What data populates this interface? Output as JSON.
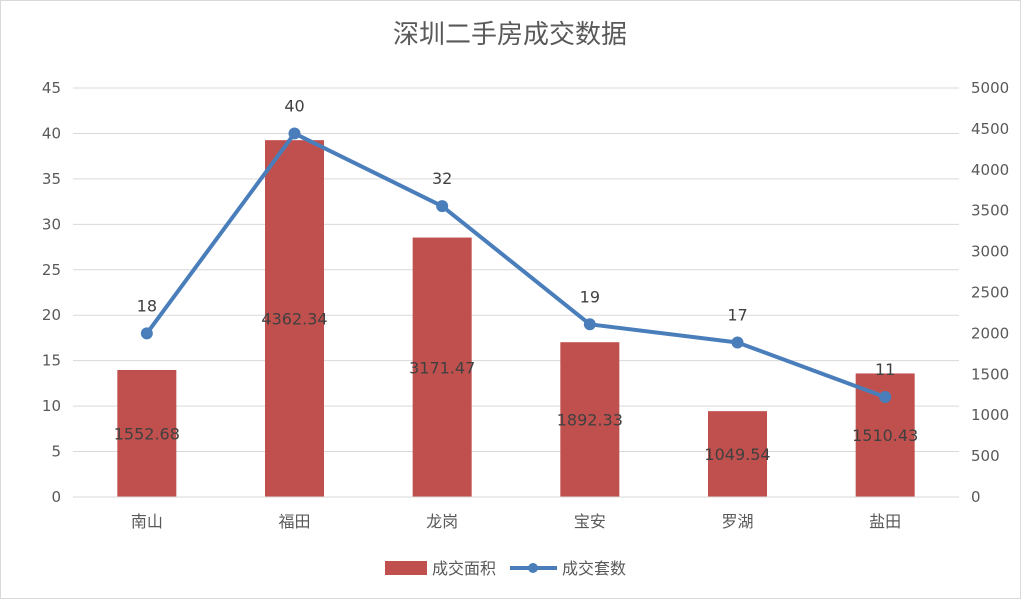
{
  "chart_data": {
    "type": "bar+line",
    "title": "深圳二手房成交数据",
    "categories": [
      "南山",
      "福田",
      "龙岗",
      "宝安",
      "罗湖",
      "盐田"
    ],
    "series": [
      {
        "name": "成交套数",
        "type": "line",
        "axis": "left",
        "color": "#4A7EBB",
        "values": [
          18,
          40,
          32,
          19,
          17,
          11
        ],
        "labels": [
          "18",
          "40",
          "32",
          "19",
          "17",
          "11"
        ]
      },
      {
        "name": "成交面积",
        "type": "bar",
        "axis": "right",
        "color": "#C0504D",
        "values": [
          1552.68,
          4362.34,
          3171.47,
          1892.33,
          1049.54,
          1510.43
        ],
        "labels": [
          "1552.68",
          "4362.34",
          "3171.47",
          "1892.33",
          "1049.54",
          "1510.43"
        ]
      }
    ],
    "left_axis": {
      "ylim": [
        0,
        45
      ],
      "ticks": [
        "0",
        "5",
        "10",
        "15",
        "20",
        "25",
        "30",
        "35",
        "40",
        "45"
      ]
    },
    "right_axis": {
      "ylim": [
        0,
        5000
      ],
      "ticks": [
        "0",
        "500",
        "1000",
        "1500",
        "2000",
        "2500",
        "3000",
        "3500",
        "4000",
        "4500",
        "5000"
      ]
    },
    "grid": true,
    "legend_position": "bottom",
    "legend": [
      {
        "name": "成交面积",
        "kind": "bar",
        "color": "#C0504D"
      },
      {
        "name": "成交套数",
        "kind": "line",
        "color": "#4A7EBB"
      }
    ]
  }
}
